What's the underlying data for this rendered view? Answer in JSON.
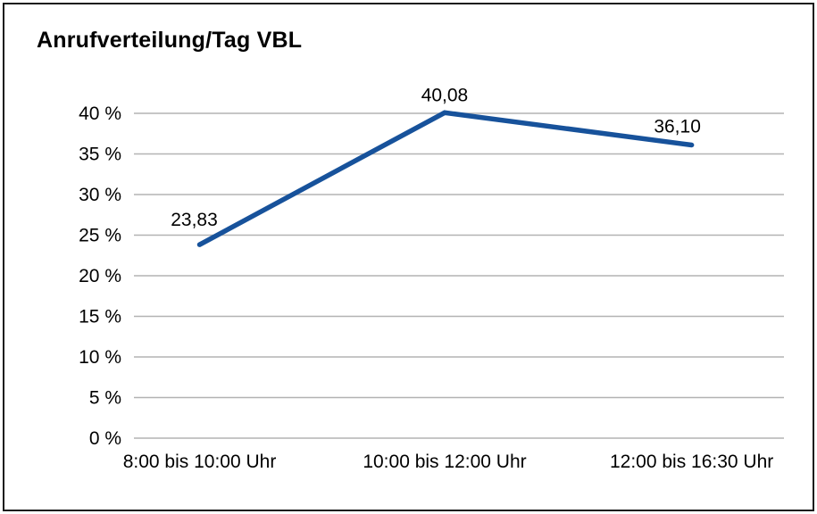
{
  "chart_data": {
    "type": "line",
    "title": "Anrufverteilung/Tag VBL",
    "categories": [
      "8:00 bis 10:00 Uhr",
      "10:00 bis 12:00 Uhr",
      "12:00 bis 16:30 Uhr"
    ],
    "values": [
      23.83,
      40.08,
      36.1
    ],
    "value_labels": [
      "23,83",
      "40,08",
      "36,10"
    ],
    "xlabel": "",
    "ylabel": "",
    "ylim": [
      0,
      40
    ],
    "ytick_step": 5,
    "ytick_labels": [
      "0 %",
      "5 %",
      "10 %",
      "15 %",
      "20 %",
      "25 %",
      "30 %",
      "35 %",
      "40 %"
    ],
    "grid": true,
    "legend_position": "none",
    "line_color": "#17529b",
    "grid_color": "#b3b3b3",
    "text_color": "#000000",
    "background_color": "#ffffff"
  }
}
